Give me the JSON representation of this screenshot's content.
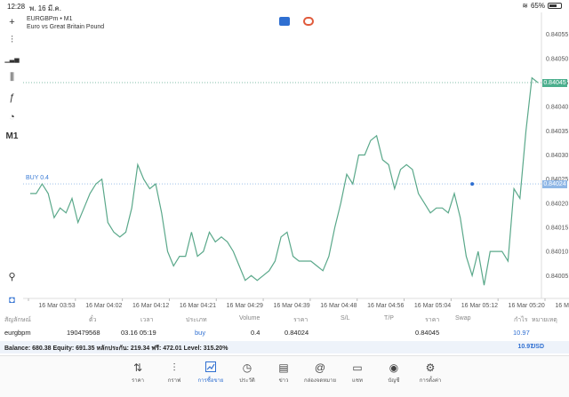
{
  "status": {
    "time": "12:28",
    "date": "พ. 16 มี.ค.",
    "battery": "65%",
    "battery_level": 0.65
  },
  "chart": {
    "symbol": "EURGBPm • M1",
    "description": "Euro vs Great Britain Pound",
    "buy_label": "BUY 0.4",
    "current_price_label": "0.84045",
    "order_price_label": "0.84024"
  },
  "chart_data": {
    "type": "line",
    "y_ticks": [
      "0.84055",
      "0.84050",
      "0.84045",
      "0.84040",
      "0.84035",
      "0.84030",
      "0.84025",
      "0.84020",
      "0.84015",
      "0.84010",
      "0.84005"
    ],
    "ylim": [
      0.84001,
      0.84059
    ],
    "x_ticks": [
      "16 Mar 03:53",
      "16 Mar 04:02",
      "16 Mar 04:12",
      "16 Mar 04:21",
      "16 Mar 04:29",
      "16 Mar 04:39",
      "16 Mar 04:48",
      "16 Mar 04:56",
      "16 Mar 05:04",
      "16 Mar 05:12",
      "16 Mar 05:20",
      "16 Mar 05:28"
    ],
    "current_price": 0.84045,
    "order_price": 0.84024,
    "order_marker_index": 74,
    "values": [
      0.84022,
      0.84022,
      0.84024,
      0.84022,
      0.84017,
      0.84019,
      0.84018,
      0.84021,
      0.84016,
      0.84019,
      0.84022,
      0.84024,
      0.84025,
      0.84016,
      0.84014,
      0.84013,
      0.84014,
      0.84019,
      0.84028,
      0.84025,
      0.84023,
      0.84024,
      0.84018,
      0.8401,
      0.84007,
      0.84009,
      0.84009,
      0.84014,
      0.84009,
      0.8401,
      0.84014,
      0.84012,
      0.84013,
      0.84012,
      0.8401,
      0.84007,
      0.84004,
      0.84005,
      0.84004,
      0.84005,
      0.84006,
      0.84008,
      0.84013,
      0.84014,
      0.84009,
      0.84008,
      0.84008,
      0.84008,
      0.84007,
      0.84006,
      0.84009,
      0.84015,
      0.8402,
      0.84026,
      0.84024,
      0.8403,
      0.8403,
      0.84033,
      0.84034,
      0.84029,
      0.84028,
      0.84023,
      0.84027,
      0.84028,
      0.84027,
      0.84022,
      0.8402,
      0.84018,
      0.84019,
      0.84019,
      0.84018,
      0.84022,
      0.84017,
      0.84009,
      0.84005,
      0.8401,
      0.84003,
      0.8401,
      0.8401,
      0.8401,
      0.84008,
      0.84023,
      0.84021,
      0.84035,
      0.84046,
      0.84045
    ]
  },
  "toolbar": [
    {
      "name": "crosshair-icon",
      "glyph": "+"
    },
    {
      "name": "candlestick-icon",
      "glyph": "⫶"
    },
    {
      "name": "indicators-icon",
      "glyph": "▁▃▅"
    },
    {
      "name": "settings-sliders-icon",
      "glyph": "⫼"
    },
    {
      "name": "function-icon",
      "glyph": "ƒ"
    },
    {
      "name": "shapes-icon",
      "glyph": "◔"
    },
    {
      "name": "timeframe-button",
      "glyph": "M1"
    }
  ],
  "positions_header": {
    "symbol": "สัญลักษณ์",
    "ticket": "ตั๋ว",
    "time": "เวลา",
    "type": "ประเภท",
    "volume": "Volume",
    "price": "ราคา",
    "sl": "S/L",
    "tp": "T/P",
    "price2": "ราคา",
    "swap": "Swap",
    "profit": "กำไร",
    "comment": "หมายเหตุ"
  },
  "position": {
    "symbol": "eurgbpm",
    "ticket": "190479568",
    "time": "03.16 05:19",
    "type": "buy",
    "volume": "0.4",
    "price": "0.84024",
    "price2": "0.84045",
    "profit": "10.97"
  },
  "balance": {
    "text": "Balance: 680.38 Equity: 691.35 หลักประกัน: 219.34 ฟรี: 472.01 Level: 315.20%",
    "profit": "10.97",
    "currency": "USD"
  },
  "tabs": [
    {
      "label": "ราคา",
      "icon": "quotes-icon",
      "glyph": "⇅"
    },
    {
      "label": "กราฟ",
      "icon": "chart-icon",
      "glyph": "⫶"
    },
    {
      "label": "การซื้อขาย",
      "icon": "trade-icon",
      "glyph": "📈"
    },
    {
      "label": "ประวัติ",
      "icon": "history-icon",
      "glyph": "◷"
    },
    {
      "label": "ข่าว",
      "icon": "news-icon",
      "glyph": "▤"
    },
    {
      "label": "กล่องจดหมาย",
      "icon": "mailbox-icon",
      "glyph": "@"
    },
    {
      "label": "แชท",
      "icon": "chat-icon",
      "glyph": "▭"
    },
    {
      "label": "บัญชี",
      "icon": "account-icon",
      "glyph": "◉"
    },
    {
      "label": "การตั้งค่า",
      "icon": "settings-icon",
      "glyph": "⚙"
    }
  ],
  "colors": {
    "line": "#5aa88a",
    "accent": "#2f6fd1",
    "order": "#8fb7e6"
  }
}
